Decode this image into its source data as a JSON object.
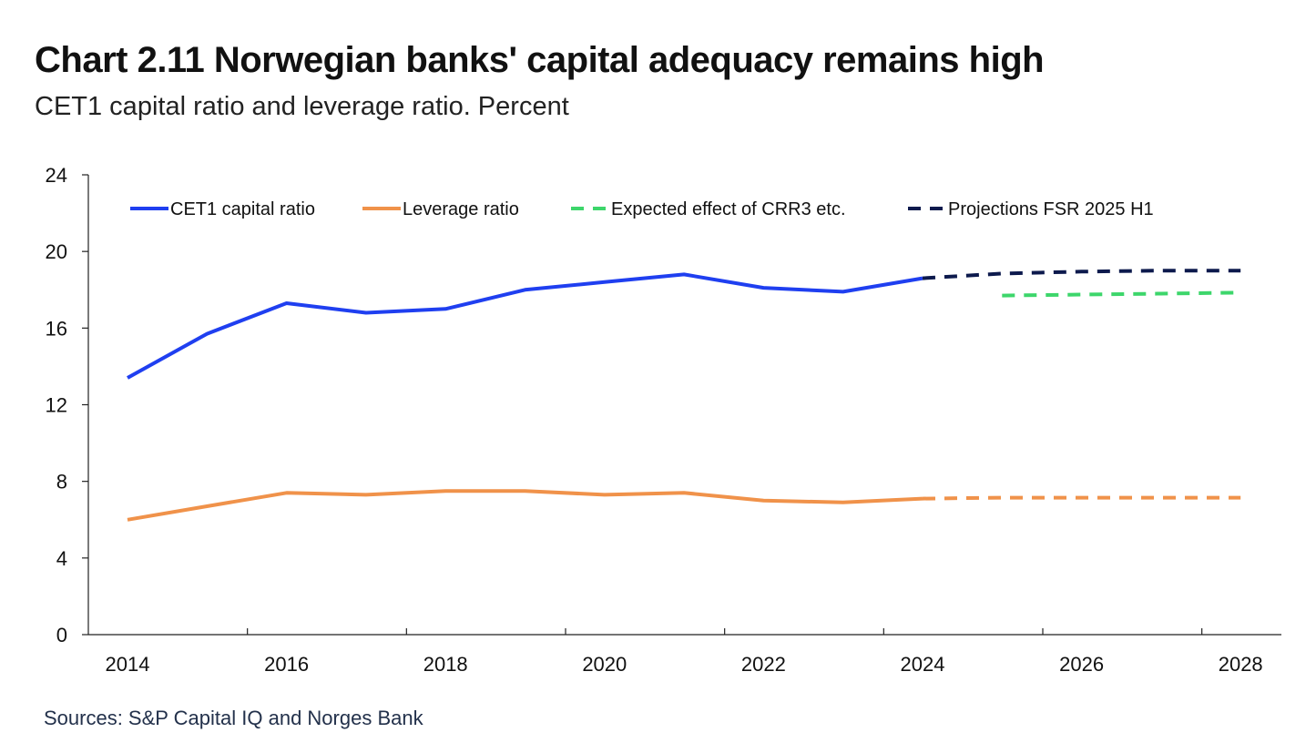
{
  "title": "Chart 2.11 Norwegian banks' capital adequacy remains high",
  "subtitle": "CET1 capital ratio and leverage ratio. Percent",
  "source": "Sources: S&P Capital IQ and Norges Bank",
  "colors": {
    "cet1": "#1f3ff0",
    "leverage": "#f0924a",
    "crr3": "#3dd66b",
    "projections": "#0d1a4d",
    "axis": "#222222"
  },
  "chart_data": {
    "type": "line",
    "ylim": [
      0,
      24
    ],
    "yticks": [
      0,
      4,
      8,
      12,
      16,
      20,
      24
    ],
    "xlim": [
      2014,
      2028.5
    ],
    "xticks": [
      2014,
      2016,
      2018,
      2020,
      2022,
      2024,
      2026,
      2028
    ],
    "xtick_labels": [
      "2014",
      "2016",
      "2018",
      "2020",
      "2022",
      "2024",
      "2026",
      "2028"
    ],
    "legend_position": "top, inside plot",
    "series": [
      {
        "name": "CET1 capital ratio",
        "key": "cet1",
        "style": "solid",
        "x": [
          2014,
          2015,
          2016,
          2017,
          2018,
          2019,
          2020,
          2021,
          2022,
          2023,
          2024
        ],
        "y": [
          13.4,
          15.7,
          17.3,
          16.8,
          17.0,
          18.0,
          18.4,
          18.8,
          18.1,
          17.9,
          18.6
        ]
      },
      {
        "name": "Leverage ratio",
        "key": "leverage",
        "style": "solid",
        "x": [
          2014,
          2015,
          2016,
          2017,
          2018,
          2019,
          2020,
          2021,
          2022,
          2023,
          2024
        ],
        "y": [
          6.0,
          6.7,
          7.4,
          7.3,
          7.5,
          7.5,
          7.3,
          7.4,
          7.0,
          6.9,
          7.1
        ]
      },
      {
        "name": "Expected effect of CRR3 etc.",
        "key": "crr3",
        "style": "dashed",
        "x": [
          2025,
          2026,
          2027,
          2028
        ],
        "y": [
          17.7,
          17.75,
          17.8,
          17.85
        ]
      },
      {
        "name": "Projections FSR 2025 H1",
        "key": "projections",
        "style": "dashed",
        "x": [
          2024,
          2025,
          2026,
          2027,
          2028
        ],
        "y": [
          18.6,
          18.85,
          18.95,
          19.0,
          19.0
        ]
      },
      {
        "name": "Projections FSR 2025 H1 (leverage ratio)",
        "key": "leverage",
        "style": "dashed",
        "in_legend": false,
        "x": [
          2024,
          2025,
          2026,
          2027,
          2028
        ],
        "y": [
          7.1,
          7.15,
          7.15,
          7.15,
          7.15
        ]
      }
    ]
  }
}
